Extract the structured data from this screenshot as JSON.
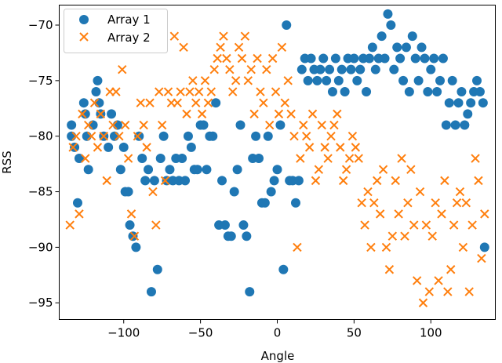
{
  "chart_data": {
    "type": "scatter",
    "title": "",
    "xlabel": "Angle",
    "ylabel": "RSS",
    "xlim": [
      -142,
      142
    ],
    "ylim": [
      -96.5,
      -68.2
    ],
    "xticks": [
      -100,
      -50,
      0,
      50,
      100
    ],
    "yticks": [
      -70,
      -75,
      -80,
      -85,
      -90,
      -95
    ],
    "xtick_labels": [
      "−100",
      "−50",
      "0",
      "50",
      "100"
    ],
    "ytick_labels": [
      "−70",
      "−75",
      "−80",
      "−85",
      "−90",
      "−95"
    ],
    "grid": false,
    "legend_position": "top-left",
    "series": [
      {
        "name": "Array 1",
        "color": "#1f77b4",
        "marker": "circle",
        "points": [
          [
            -134,
            -79
          ],
          [
            -134,
            -80
          ],
          [
            -132,
            -81
          ],
          [
            -130,
            -86
          ],
          [
            -129,
            -82
          ],
          [
            -126,
            -77
          ],
          [
            -125,
            -78
          ],
          [
            -124,
            -80
          ],
          [
            -123,
            -83
          ],
          [
            -120,
            -79
          ],
          [
            -118,
            -76
          ],
          [
            -117,
            -75
          ],
          [
            -116,
            -77
          ],
          [
            -115,
            -78
          ],
          [
            -113,
            -80
          ],
          [
            -110,
            -81
          ],
          [
            -108,
            -78
          ],
          [
            -106,
            -80
          ],
          [
            -104,
            -79
          ],
          [
            -102,
            -83
          ],
          [
            -100,
            -81
          ],
          [
            -99,
            -85
          ],
          [
            -97,
            -85
          ],
          [
            -96,
            -88
          ],
          [
            -94,
            -89
          ],
          [
            -92,
            -90
          ],
          [
            -90,
            -80
          ],
          [
            -88,
            -82
          ],
          [
            -86,
            -84
          ],
          [
            -84,
            -83
          ],
          [
            -82,
            -94
          ],
          [
            -80,
            -84
          ],
          [
            -78,
            -92
          ],
          [
            -76,
            -82
          ],
          [
            -74,
            -80
          ],
          [
            -72,
            -84
          ],
          [
            -70,
            -83
          ],
          [
            -68,
            -84
          ],
          [
            -66,
            -82
          ],
          [
            -64,
            -84
          ],
          [
            -62,
            -82
          ],
          [
            -60,
            -84
          ],
          [
            -58,
            -80
          ],
          [
            -56,
            -81
          ],
          [
            -54,
            -83
          ],
          [
            -52,
            -83
          ],
          [
            -50,
            -79
          ],
          [
            -48,
            -79
          ],
          [
            -46,
            -83
          ],
          [
            -44,
            -80
          ],
          [
            -42,
            -80
          ],
          [
            -40,
            -77
          ],
          [
            -38,
            -88
          ],
          [
            -36,
            -84
          ],
          [
            -34,
            -88
          ],
          [
            -32,
            -89
          ],
          [
            -30,
            -89
          ],
          [
            -28,
            -85
          ],
          [
            -26,
            -83
          ],
          [
            -24,
            -79
          ],
          [
            -22,
            -88
          ],
          [
            -20,
            -89
          ],
          [
            -18,
            -94
          ],
          [
            -16,
            -82
          ],
          [
            -14,
            -80
          ],
          [
            -12,
            -82
          ],
          [
            -10,
            -86
          ],
          [
            -8,
            -86
          ],
          [
            -6,
            -80
          ],
          [
            -4,
            -85
          ],
          [
            -2,
            -84
          ],
          [
            0,
            -83
          ],
          [
            2,
            -79
          ],
          [
            4,
            -92
          ],
          [
            6,
            -70
          ],
          [
            8,
            -84
          ],
          [
            10,
            -84
          ],
          [
            12,
            -86
          ],
          [
            14,
            -84
          ],
          [
            16,
            -74
          ],
          [
            18,
            -73
          ],
          [
            20,
            -75
          ],
          [
            22,
            -73
          ],
          [
            24,
            -74
          ],
          [
            26,
            -75
          ],
          [
            28,
            -74
          ],
          [
            30,
            -73
          ],
          [
            32,
            -75
          ],
          [
            34,
            -74
          ],
          [
            36,
            -76
          ],
          [
            38,
            -73
          ],
          [
            40,
            -75
          ],
          [
            42,
            -74
          ],
          [
            44,
            -76
          ],
          [
            46,
            -73
          ],
          [
            48,
            -74
          ],
          [
            50,
            -73
          ],
          [
            52,
            -75
          ],
          [
            54,
            -74
          ],
          [
            56,
            -73
          ],
          [
            58,
            -76
          ],
          [
            60,
            -73
          ],
          [
            62,
            -72
          ],
          [
            64,
            -74
          ],
          [
            66,
            -73
          ],
          [
            68,
            -71
          ],
          [
            70,
            -73
          ],
          [
            72,
            -69
          ],
          [
            74,
            -70
          ],
          [
            76,
            -74
          ],
          [
            78,
            -72
          ],
          [
            80,
            -73
          ],
          [
            82,
            -75
          ],
          [
            84,
            -72
          ],
          [
            86,
            -76
          ],
          [
            88,
            -71
          ],
          [
            90,
            -73
          ],
          [
            92,
            -75
          ],
          [
            94,
            -72
          ],
          [
            96,
            -73
          ],
          [
            98,
            -76
          ],
          [
            100,
            -74
          ],
          [
            102,
            -73
          ],
          [
            104,
            -76
          ],
          [
            106,
            -75
          ],
          [
            108,
            -73
          ],
          [
            110,
            -79
          ],
          [
            112,
            -77
          ],
          [
            114,
            -75
          ],
          [
            116,
            -79
          ],
          [
            118,
            -77
          ],
          [
            120,
            -76
          ],
          [
            122,
            -79
          ],
          [
            124,
            -78
          ],
          [
            126,
            -77
          ],
          [
            128,
            -76
          ],
          [
            130,
            -75
          ],
          [
            132,
            -76
          ],
          [
            134,
            -77
          ],
          [
            135,
            -90
          ]
        ]
      },
      {
        "name": "Array 2",
        "color": "#ff7f0e",
        "marker": "x",
        "points": [
          [
            -135,
            -88
          ],
          [
            -133,
            -81
          ],
          [
            -131,
            -80
          ],
          [
            -129,
            -87
          ],
          [
            -127,
            -78
          ],
          [
            -125,
            -82
          ],
          [
            -123,
            -79
          ],
          [
            -121,
            -80
          ],
          [
            -119,
            -77
          ],
          [
            -117,
            -81
          ],
          [
            -115,
            -78
          ],
          [
            -113,
            -80
          ],
          [
            -111,
            -84
          ],
          [
            -109,
            -76
          ],
          [
            -107,
            -79
          ],
          [
            -105,
            -76
          ],
          [
            -103,
            -80
          ],
          [
            -101,
            -74
          ],
          [
            -99,
            -79
          ],
          [
            -97,
            -82
          ],
          [
            -95,
            -87
          ],
          [
            -93,
            -89
          ],
          [
            -91,
            -80
          ],
          [
            -89,
            -77
          ],
          [
            -87,
            -79
          ],
          [
            -85,
            -81
          ],
          [
            -83,
            -77
          ],
          [
            -81,
            -85
          ],
          [
            -79,
            -88
          ],
          [
            -77,
            -76
          ],
          [
            -75,
            -79
          ],
          [
            -73,
            -84
          ],
          [
            -71,
            -76
          ],
          [
            -69,
            -77
          ],
          [
            -67,
            -71
          ],
          [
            -65,
            -77
          ],
          [
            -63,
            -76
          ],
          [
            -61,
            -72
          ],
          [
            -59,
            -78
          ],
          [
            -57,
            -76
          ],
          [
            -55,
            -75
          ],
          [
            -53,
            -77
          ],
          [
            -51,
            -76
          ],
          [
            -49,
            -78
          ],
          [
            -47,
            -75
          ],
          [
            -45,
            -77
          ],
          [
            -43,
            -76
          ],
          [
            -41,
            -74
          ],
          [
            -39,
            -73
          ],
          [
            -37,
            -72
          ],
          [
            -35,
            -71
          ],
          [
            -33,
            -73
          ],
          [
            -31,
            -74
          ],
          [
            -29,
            -76
          ],
          [
            -27,
            -75
          ],
          [
            -25,
            -72
          ],
          [
            -23,
            -73
          ],
          [
            -21,
            -71
          ],
          [
            -19,
            -75
          ],
          [
            -17,
            -74
          ],
          [
            -15,
            -78
          ],
          [
            -13,
            -73
          ],
          [
            -11,
            -76
          ],
          [
            -9,
            -77
          ],
          [
            -7,
            -74
          ],
          [
            -5,
            -79
          ],
          [
            -3,
            -73
          ],
          [
            -1,
            -76
          ],
          [
            1,
            -78
          ],
          [
            3,
            -72
          ],
          [
            5,
            -77
          ],
          [
            7,
            -75
          ],
          [
            9,
            -78
          ],
          [
            11,
            -80
          ],
          [
            13,
            -90
          ],
          [
            15,
            -82
          ],
          [
            17,
            -79
          ],
          [
            19,
            -80
          ],
          [
            21,
            -81
          ],
          [
            23,
            -78
          ],
          [
            25,
            -84
          ],
          [
            27,
            -83
          ],
          [
            29,
            -79
          ],
          [
            31,
            -81
          ],
          [
            33,
            -82
          ],
          [
            35,
            -80
          ],
          [
            37,
            -79
          ],
          [
            39,
            -78
          ],
          [
            41,
            -81
          ],
          [
            43,
            -84
          ],
          [
            45,
            -83
          ],
          [
            47,
            -82
          ],
          [
            49,
            -80
          ],
          [
            51,
            -81
          ],
          [
            53,
            -82
          ],
          [
            55,
            -86
          ],
          [
            57,
            -88
          ],
          [
            59,
            -85
          ],
          [
            61,
            -90
          ],
          [
            63,
            -86
          ],
          [
            65,
            -84
          ],
          [
            67,
            -87
          ],
          [
            69,
            -83
          ],
          [
            71,
            -90
          ],
          [
            73,
            -92
          ],
          [
            75,
            -89
          ],
          [
            77,
            -84
          ],
          [
            79,
            -87
          ],
          [
            81,
            -82
          ],
          [
            83,
            -89
          ],
          [
            85,
            -86
          ],
          [
            87,
            -83
          ],
          [
            89,
            -88
          ],
          [
            91,
            -93
          ],
          [
            93,
            -85
          ],
          [
            95,
            -95
          ],
          [
            97,
            -88
          ],
          [
            99,
            -94
          ],
          [
            101,
            -89
          ],
          [
            103,
            -86
          ],
          [
            105,
            -93
          ],
          [
            107,
            -87
          ],
          [
            109,
            -84
          ],
          [
            111,
            -94
          ],
          [
            113,
            -92
          ],
          [
            115,
            -88
          ],
          [
            117,
            -86
          ],
          [
            119,
            -85
          ],
          [
            121,
            -90
          ],
          [
            123,
            -86
          ],
          [
            125,
            -94
          ],
          [
            127,
            -88
          ],
          [
            129,
            -82
          ],
          [
            131,
            -84
          ],
          [
            133,
            -91
          ],
          [
            135,
            -87
          ]
        ]
      }
    ]
  }
}
